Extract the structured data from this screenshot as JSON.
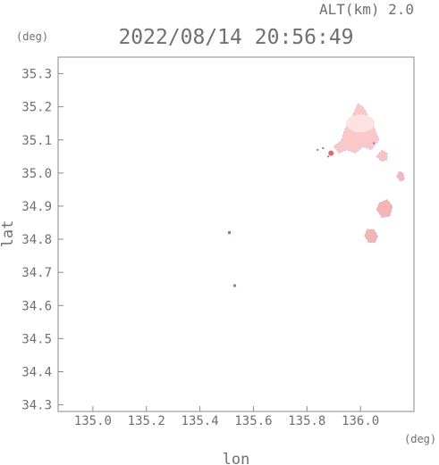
{
  "chart_data": {
    "type": "scatter",
    "title": "2022/08/14 20:56:49",
    "altitude_label": "ALT(km) 2.0",
    "xlabel": "lon",
    "ylabel": "lat",
    "x_unit": "(deg)",
    "y_unit": "(deg)",
    "xlim": [
      134.87,
      136.2
    ],
    "ylim": [
      34.28,
      35.35
    ],
    "grid": false,
    "x_ticks": [
      "135.0",
      "135.2",
      "135.4",
      "135.6",
      "135.8",
      "136.0"
    ],
    "y_ticks": [
      "34.3",
      "34.4",
      "34.5",
      "34.6",
      "34.7",
      "34.8",
      "34.9",
      "35.0",
      "35.1",
      "35.2",
      "35.3"
    ],
    "echo_regions": [
      {
        "name": "main-cell",
        "lon": 135.99,
        "lat": 35.13,
        "color": "#f9c8c8"
      },
      {
        "name": "east-fringe",
        "lon": 136.08,
        "lat": 35.05,
        "color": "#f7c4c4"
      },
      {
        "name": "far-east-cell",
        "lon": 136.15,
        "lat": 34.99,
        "color": "#f5b8b8"
      },
      {
        "name": "south-cell-upper",
        "lon": 136.09,
        "lat": 34.89,
        "color": "#f3b4b4"
      },
      {
        "name": "south-cell-lower",
        "lon": 136.04,
        "lat": 34.81,
        "color": "#f3b4b4"
      },
      {
        "name": "core",
        "lon": 135.89,
        "lat": 35.06,
        "color": "#e86868"
      },
      {
        "name": "speck-1",
        "lon": 135.51,
        "lat": 34.82,
        "color": "#7070d8"
      },
      {
        "name": "speck-2",
        "lon": 135.53,
        "lat": 34.66,
        "color": "#8080d0"
      }
    ]
  }
}
